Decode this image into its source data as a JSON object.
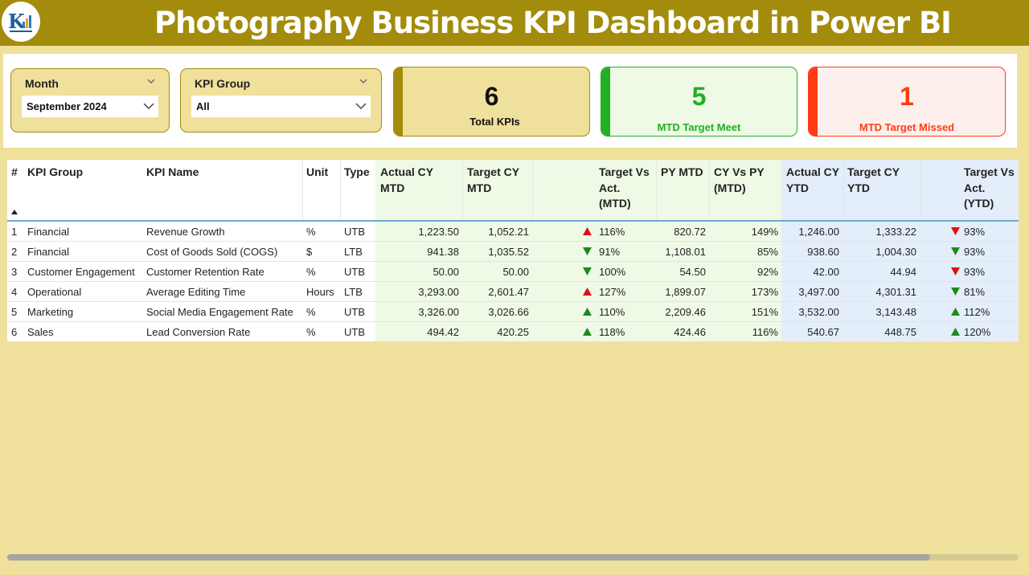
{
  "header": {
    "title": "Photography Business KPI Dashboard in Power BI"
  },
  "filters": {
    "month": {
      "label": "Month",
      "value": "September 2024"
    },
    "kpi_group": {
      "label": "KPI Group",
      "value": "All"
    }
  },
  "cards": {
    "total": {
      "value": "6",
      "label": "Total KPIs",
      "accent": "#a38c0b"
    },
    "meet": {
      "value": "5",
      "label": "MTD Target Meet",
      "accent": "#21b021"
    },
    "missed": {
      "value": "1",
      "label": "MTD Target Missed",
      "accent": "#ff3b14"
    }
  },
  "table": {
    "headers": {
      "num": "#",
      "group": "KPI Group",
      "name": "KPI Name",
      "unit": "Unit",
      "type": "Type",
      "actual_mtd": "Actual CY MTD",
      "target_mtd": "Target CY MTD",
      "tva_mtd": "Target Vs Act. (MTD)",
      "py_mtd": "PY MTD",
      "cy_py_mtd": "CY Vs PY (MTD)",
      "actual_ytd": "Actual CY YTD",
      "target_ytd": "Target CY YTD",
      "tva_ytd": "Target Vs Act. (YTD)"
    },
    "rows": [
      {
        "num": "1",
        "group": "Financial",
        "name": "Revenue Growth",
        "unit": "%",
        "type": "UTB",
        "actual_mtd": "1,223.50",
        "target_mtd": "1,052.21",
        "mtd_icon": "up-red",
        "tva_mtd": "116%",
        "py_mtd": "820.72",
        "cy_py_mtd": "149%",
        "actual_ytd": "1,246.00",
        "target_ytd": "1,333.22",
        "ytd_icon": "down-red",
        "tva_ytd": "93%"
      },
      {
        "num": "2",
        "group": "Financial",
        "name": "Cost of Goods Sold (COGS)",
        "unit": "$",
        "type": "LTB",
        "actual_mtd": "941.38",
        "target_mtd": "1,035.52",
        "mtd_icon": "down-green",
        "tva_mtd": "91%",
        "py_mtd": "1,108.01",
        "cy_py_mtd": "85%",
        "actual_ytd": "938.60",
        "target_ytd": "1,004.30",
        "ytd_icon": "down-green",
        "tva_ytd": "93%"
      },
      {
        "num": "3",
        "group": "Customer Engagement",
        "name": "Customer Retention Rate",
        "unit": "%",
        "type": "UTB",
        "actual_mtd": "50.00",
        "target_mtd": "50.00",
        "mtd_icon": "down-green",
        "tva_mtd": "100%",
        "py_mtd": "54.50",
        "cy_py_mtd": "92%",
        "actual_ytd": "42.00",
        "target_ytd": "44.94",
        "ytd_icon": "down-red",
        "tva_ytd": "93%"
      },
      {
        "num": "4",
        "group": "Operational",
        "name": "Average Editing Time",
        "unit": "Hours",
        "type": "LTB",
        "actual_mtd": "3,293.00",
        "target_mtd": "2,601.47",
        "mtd_icon": "up-red",
        "tva_mtd": "127%",
        "py_mtd": "1,899.07",
        "cy_py_mtd": "173%",
        "actual_ytd": "3,497.00",
        "target_ytd": "4,301.31",
        "ytd_icon": "down-green",
        "tva_ytd": "81%"
      },
      {
        "num": "5",
        "group": "Marketing",
        "name": "Social Media Engagement Rate",
        "unit": "%",
        "type": "UTB",
        "actual_mtd": "3,326.00",
        "target_mtd": "3,026.66",
        "mtd_icon": "up-green",
        "tva_mtd": "110%",
        "py_mtd": "2,209.46",
        "cy_py_mtd": "151%",
        "actual_ytd": "3,532.00",
        "target_ytd": "3,143.48",
        "ytd_icon": "up-green",
        "tva_ytd": "112%"
      },
      {
        "num": "6",
        "group": "Sales",
        "name": "Lead Conversion Rate",
        "unit": "%",
        "type": "UTB",
        "actual_mtd": "494.42",
        "target_mtd": "420.25",
        "mtd_icon": "up-green",
        "tva_mtd": "118%",
        "py_mtd": "424.46",
        "cy_py_mtd": "116%",
        "actual_ytd": "540.67",
        "target_ytd": "448.75",
        "ytd_icon": "up-green",
        "tva_ytd": "120%"
      }
    ]
  },
  "colors": {
    "header_bg": "#a38c0b",
    "page_bg": "#efe09b",
    "up_green": "#1a8c1a",
    "down_red": "#e01010"
  }
}
